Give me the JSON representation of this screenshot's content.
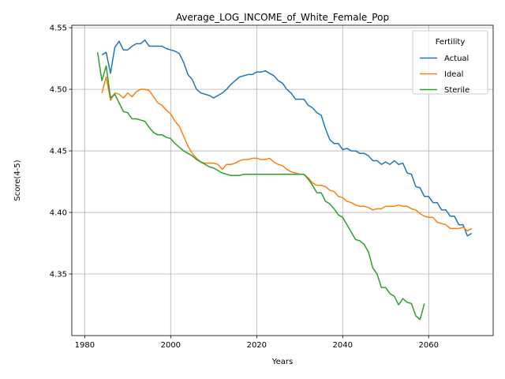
{
  "chart_data": {
    "type": "line",
    "title": "Average_LOG_INCOME_of_White_Female_Pop",
    "xlabel": "Years",
    "ylabel": "Score(4-5)",
    "xlim": [
      1977,
      2075
    ],
    "ylim": [
      4.3,
      4.552
    ],
    "xticks": [
      1980,
      2000,
      2020,
      2040,
      2060
    ],
    "yticks": [
      4.35,
      4.4,
      4.45,
      4.5,
      4.55
    ],
    "grid": true,
    "legend": {
      "title": "Fertility",
      "placement": "top-right"
    },
    "series": [
      {
        "name": "Actual",
        "color": "#1f77b4",
        "points": [
          [
            1984,
            4.528
          ],
          [
            1985,
            4.53
          ],
          [
            1986,
            4.513
          ],
          [
            1987,
            4.534
          ],
          [
            1988,
            4.539
          ],
          [
            1989,
            4.532
          ],
          [
            1990,
            4.532
          ],
          [
            1991,
            4.535
          ],
          [
            1992,
            4.537
          ],
          [
            1993,
            4.537
          ],
          [
            1994,
            4.54
          ],
          [
            1995,
            4.535
          ],
          [
            1996,
            4.535
          ],
          [
            1997,
            4.535
          ],
          [
            1998,
            4.535
          ],
          [
            1999,
            4.533
          ],
          [
            2000,
            4.532
          ],
          [
            2001,
            4.531
          ],
          [
            2002,
            4.529
          ],
          [
            2003,
            4.522
          ],
          [
            2004,
            4.512
          ],
          [
            2005,
            4.508
          ],
          [
            2006,
            4.5
          ],
          [
            2007,
            4.497
          ],
          [
            2008,
            4.496
          ],
          [
            2009,
            4.495
          ],
          [
            2010,
            4.493
          ],
          [
            2011,
            4.495
          ],
          [
            2012,
            4.497
          ],
          [
            2013,
            4.5
          ],
          [
            2014,
            4.504
          ],
          [
            2015,
            4.507
          ],
          [
            2016,
            4.51
          ],
          [
            2017,
            4.511
          ],
          [
            2018,
            4.512
          ],
          [
            2019,
            4.512
          ],
          [
            2020,
            4.514
          ],
          [
            2021,
            4.514
          ],
          [
            2022,
            4.515
          ],
          [
            2023,
            4.513
          ],
          [
            2024,
            4.511
          ],
          [
            2025,
            4.507
          ],
          [
            2026,
            4.505
          ],
          [
            2027,
            4.5
          ],
          [
            2028,
            4.497
          ],
          [
            2029,
            4.492
          ],
          [
            2030,
            4.492
          ],
          [
            2031,
            4.492
          ],
          [
            2032,
            4.487
          ],
          [
            2033,
            4.485
          ],
          [
            2034,
            4.481
          ],
          [
            2035,
            4.479
          ],
          [
            2036,
            4.468
          ],
          [
            2037,
            4.459
          ],
          [
            2038,
            4.456
          ],
          [
            2039,
            4.456
          ],
          [
            2040,
            4.451
          ],
          [
            2041,
            4.452
          ],
          [
            2042,
            4.45
          ],
          [
            2043,
            4.45
          ],
          [
            2044,
            4.448
          ],
          [
            2045,
            4.448
          ],
          [
            2046,
            4.446
          ],
          [
            2047,
            4.442
          ],
          [
            2048,
            4.442
          ],
          [
            2049,
            4.439
          ],
          [
            2050,
            4.441
          ],
          [
            2051,
            4.439
          ],
          [
            2052,
            4.442
          ],
          [
            2053,
            4.439
          ],
          [
            2054,
            4.44
          ],
          [
            2055,
            4.432
          ],
          [
            2056,
            4.431
          ],
          [
            2057,
            4.421
          ],
          [
            2058,
            4.42
          ],
          [
            2059,
            4.413
          ],
          [
            2060,
            4.413
          ],
          [
            2061,
            4.408
          ],
          [
            2062,
            4.408
          ],
          [
            2063,
            4.402
          ],
          [
            2064,
            4.402
          ],
          [
            2065,
            4.397
          ],
          [
            2066,
            4.397
          ],
          [
            2067,
            4.39
          ],
          [
            2068,
            4.39
          ],
          [
            2069,
            4.381
          ],
          [
            2070,
            4.383
          ]
        ]
      },
      {
        "name": "Ideal",
        "color": "#ff7f0e",
        "points": [
          [
            1984,
            4.497
          ],
          [
            1985,
            4.51
          ],
          [
            1986,
            4.491
          ],
          [
            1987,
            4.497
          ],
          [
            1988,
            4.496
          ],
          [
            1989,
            4.493
          ],
          [
            1990,
            4.497
          ],
          [
            1991,
            4.494
          ],
          [
            1992,
            4.498
          ],
          [
            1993,
            4.5
          ],
          [
            1994,
            4.5
          ],
          [
            1995,
            4.499
          ],
          [
            1996,
            4.494
          ],
          [
            1997,
            4.489
          ],
          [
            1998,
            4.487
          ],
          [
            1999,
            4.483
          ],
          [
            2000,
            4.48
          ],
          [
            2001,
            4.474
          ],
          [
            2002,
            4.47
          ],
          [
            2003,
            4.462
          ],
          [
            2004,
            4.454
          ],
          [
            2005,
            4.448
          ],
          [
            2006,
            4.444
          ],
          [
            2007,
            4.441
          ],
          [
            2008,
            4.44
          ],
          [
            2009,
            4.44
          ],
          [
            2010,
            4.44
          ],
          [
            2011,
            4.439
          ],
          [
            2012,
            4.435
          ],
          [
            2013,
            4.439
          ],
          [
            2014,
            4.439
          ],
          [
            2015,
            4.44
          ],
          [
            2016,
            4.442
          ],
          [
            2017,
            4.443
          ],
          [
            2018,
            4.443
          ],
          [
            2019,
            4.444
          ],
          [
            2020,
            4.444
          ],
          [
            2021,
            4.443
          ],
          [
            2022,
            4.443
          ],
          [
            2023,
            4.444
          ],
          [
            2024,
            4.441
          ],
          [
            2025,
            4.439
          ],
          [
            2026,
            4.438
          ],
          [
            2027,
            4.435
          ],
          [
            2028,
            4.433
          ],
          [
            2029,
            4.432
          ],
          [
            2030,
            4.431
          ],
          [
            2031,
            4.431
          ],
          [
            2032,
            4.428
          ],
          [
            2033,
            4.424
          ],
          [
            2034,
            4.422
          ],
          [
            2035,
            4.422
          ],
          [
            2036,
            4.421
          ],
          [
            2037,
            4.418
          ],
          [
            2038,
            4.417
          ],
          [
            2039,
            4.413
          ],
          [
            2040,
            4.412
          ],
          [
            2041,
            4.409
          ],
          [
            2042,
            4.408
          ],
          [
            2043,
            4.406
          ],
          [
            2044,
            4.405
          ],
          [
            2045,
            4.405
          ],
          [
            2046,
            4.404
          ],
          [
            2047,
            4.402
          ],
          [
            2048,
            4.403
          ],
          [
            2049,
            4.403
          ],
          [
            2050,
            4.405
          ],
          [
            2051,
            4.405
          ],
          [
            2052,
            4.405
          ],
          [
            2053,
            4.406
          ],
          [
            2054,
            4.405
          ],
          [
            2055,
            4.405
          ],
          [
            2056,
            4.403
          ],
          [
            2057,
            4.402
          ],
          [
            2058,
            4.399
          ],
          [
            2059,
            4.397
          ],
          [
            2060,
            4.396
          ],
          [
            2061,
            4.396
          ],
          [
            2062,
            4.392
          ],
          [
            2063,
            4.391
          ],
          [
            2064,
            4.39
          ],
          [
            2065,
            4.387
          ],
          [
            2066,
            4.387
          ],
          [
            2067,
            4.387
          ],
          [
            2068,
            4.388
          ],
          [
            2069,
            4.385
          ],
          [
            2070,
            4.387
          ]
        ]
      },
      {
        "name": "Sterile",
        "color": "#2ca02c",
        "points": [
          [
            1983,
            4.53
          ],
          [
            1984,
            4.507
          ],
          [
            1985,
            4.519
          ],
          [
            1986,
            4.493
          ],
          [
            1987,
            4.496
          ],
          [
            1988,
            4.489
          ],
          [
            1989,
            4.482
          ],
          [
            1990,
            4.481
          ],
          [
            1991,
            4.476
          ],
          [
            1992,
            4.476
          ],
          [
            1993,
            4.475
          ],
          [
            1994,
            4.474
          ],
          [
            1995,
            4.469
          ],
          [
            1996,
            4.465
          ],
          [
            1997,
            4.463
          ],
          [
            1998,
            4.463
          ],
          [
            1999,
            4.461
          ],
          [
            2000,
            4.46
          ],
          [
            2001,
            4.456
          ],
          [
            2002,
            4.453
          ],
          [
            2003,
            4.45
          ],
          [
            2004,
            4.448
          ],
          [
            2005,
            4.446
          ],
          [
            2006,
            4.443
          ],
          [
            2007,
            4.441
          ],
          [
            2008,
            4.439
          ],
          [
            2009,
            4.437
          ],
          [
            2010,
            4.436
          ],
          [
            2011,
            4.434
          ],
          [
            2012,
            4.432
          ],
          [
            2013,
            4.431
          ],
          [
            2014,
            4.43
          ],
          [
            2015,
            4.43
          ],
          [
            2016,
            4.43
          ],
          [
            2017,
            4.431
          ],
          [
            2018,
            4.431
          ],
          [
            2019,
            4.431
          ],
          [
            2020,
            4.431
          ],
          [
            2021,
            4.431
          ],
          [
            2022,
            4.431
          ],
          [
            2023,
            4.431
          ],
          [
            2024,
            4.431
          ],
          [
            2025,
            4.431
          ],
          [
            2026,
            4.431
          ],
          [
            2027,
            4.431
          ],
          [
            2028,
            4.431
          ],
          [
            2029,
            4.431
          ],
          [
            2030,
            4.431
          ],
          [
            2031,
            4.431
          ],
          [
            2032,
            4.427
          ],
          [
            2033,
            4.422
          ],
          [
            2034,
            4.416
          ],
          [
            2035,
            4.416
          ],
          [
            2036,
            4.409
          ],
          [
            2037,
            4.407
          ],
          [
            2038,
            4.403
          ],
          [
            2039,
            4.398
          ],
          [
            2040,
            4.396
          ],
          [
            2041,
            4.39
          ],
          [
            2042,
            4.384
          ],
          [
            2043,
            4.378
          ],
          [
            2044,
            4.377
          ],
          [
            2045,
            4.374
          ],
          [
            2046,
            4.368
          ],
          [
            2047,
            4.355
          ],
          [
            2048,
            4.35
          ],
          [
            2049,
            4.339
          ],
          [
            2050,
            4.339
          ],
          [
            2051,
            4.334
          ],
          [
            2052,
            4.332
          ],
          [
            2053,
            4.325
          ],
          [
            2054,
            4.33
          ],
          [
            2055,
            4.327
          ],
          [
            2056,
            4.326
          ],
          [
            2057,
            4.316
          ],
          [
            2058,
            4.313
          ],
          [
            2059,
            4.326
          ]
        ]
      }
    ]
  }
}
